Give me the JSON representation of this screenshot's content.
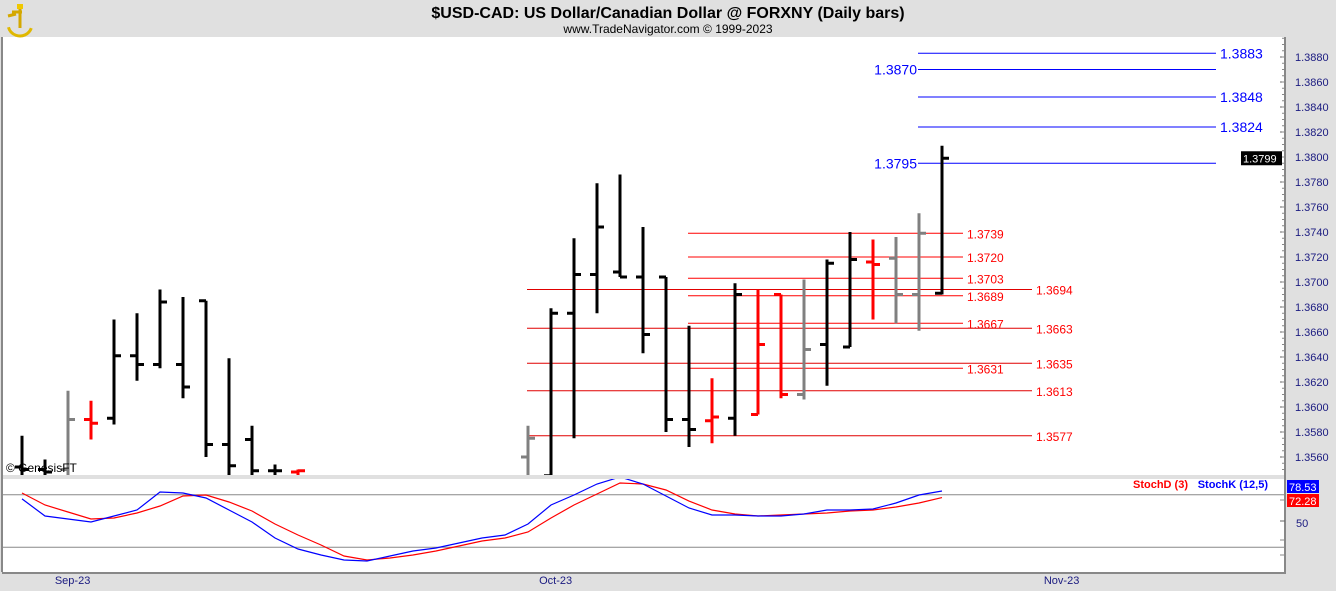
{
  "header": {
    "title": "$USD-CAD:  US Dollar/Canadian Dollar @ FORXNY  (Daily bars)",
    "subtitle": "www.TradeNavigator.com © 1999-2023",
    "logo": "sextant-logo"
  },
  "watermark": "© GenesisFT",
  "chart_data": [
    {
      "type": "ohlc",
      "title": "$USD-CAD:  US Dollar/Canadian Dollar @ FORXNY  (Daily bars)",
      "ylim": [
        1.3545,
        1.3895
      ],
      "y_ticks": [
        "1.3880",
        "1.3860",
        "1.3840",
        "1.3820",
        "1.3800",
        "1.3780",
        "1.3760",
        "1.3740",
        "1.3720",
        "1.3700",
        "1.3680",
        "1.3660",
        "1.3640",
        "1.3620",
        "1.3600",
        "1.3580",
        "1.3560"
      ],
      "x_labels": [
        "Sep-23",
        "Oct-23",
        "Nov-23"
      ],
      "last_price": "1.3799",
      "colors": {
        "black": "#000000",
        "red": "#ff0000",
        "gray": "#808080"
      },
      "bars": [
        {
          "o": 1.3552,
          "h": 1.3577,
          "l": 1.354,
          "c": 1.355,
          "color": "black"
        },
        {
          "o": 1.355,
          "h": 1.3558,
          "l": 1.354,
          "c": 1.3548,
          "color": "black"
        },
        {
          "o": 1.355,
          "h": 1.3613,
          "l": 1.354,
          "c": 1.359,
          "color": "gray"
        },
        {
          "o": 1.359,
          "h": 1.3605,
          "l": 1.3574,
          "c": 1.3587,
          "color": "red"
        },
        {
          "o": 1.3591,
          "h": 1.367,
          "l": 1.3586,
          "c": 1.3641,
          "color": "black"
        },
        {
          "o": 1.3641,
          "h": 1.3675,
          "l": 1.3621,
          "c": 1.3634,
          "color": "black"
        },
        {
          "o": 1.3634,
          "h": 1.3694,
          "l": 1.3631,
          "c": 1.3684,
          "color": "black"
        },
        {
          "o": 1.3634,
          "h": 1.3688,
          "l": 1.3607,
          "c": 1.3616,
          "color": "black"
        },
        {
          "o": 1.3685,
          "h": 1.3685,
          "l": 1.356,
          "c": 1.357,
          "color": "black"
        },
        {
          "o": 1.357,
          "h": 1.3639,
          "l": 1.354,
          "c": 1.3553,
          "color": "black"
        },
        {
          "o": 1.3574,
          "h": 1.3585,
          "l": 1.354,
          "c": 1.3549,
          "color": "black"
        },
        {
          "o": 1.3549,
          "h": 1.3554,
          "l": 1.354,
          "c": 1.3549,
          "color": "black"
        },
        {
          "o": 1.3548,
          "h": 1.355,
          "l": 1.354,
          "c": 1.3549,
          "color": "red"
        },
        null,
        null,
        null,
        null,
        null,
        null,
        null,
        null,
        null,
        {
          "o": 1.356,
          "h": 1.3585,
          "l": 1.354,
          "c": 1.3575,
          "color": "gray"
        },
        {
          "o": 1.3545,
          "h": 1.3679,
          "l": 1.354,
          "c": 1.3675,
          "color": "black"
        },
        {
          "o": 1.3675,
          "h": 1.3735,
          "l": 1.3575,
          "c": 1.3706,
          "color": "black"
        },
        {
          "o": 1.3706,
          "h": 1.3779,
          "l": 1.3675,
          "c": 1.3744,
          "color": "black"
        },
        {
          "o": 1.3708,
          "h": 1.3786,
          "l": 1.3704,
          "c": 1.3704,
          "color": "black"
        },
        {
          "o": 1.3704,
          "h": 1.3744,
          "l": 1.3643,
          "c": 1.3658,
          "color": "black"
        },
        {
          "o": 1.3704,
          "h": 1.3704,
          "l": 1.358,
          "c": 1.359,
          "color": "black"
        },
        {
          "o": 1.359,
          "h": 1.3665,
          "l": 1.3568,
          "c": 1.3582,
          "color": "black"
        },
        {
          "o": 1.3589,
          "h": 1.3623,
          "l": 1.3571,
          "c": 1.3592,
          "color": "red"
        },
        {
          "o": 1.3591,
          "h": 1.3699,
          "l": 1.3577,
          "c": 1.369,
          "color": "black"
        },
        {
          "o": 1.3594,
          "h": 1.3694,
          "l": 1.3594,
          "c": 1.365,
          "color": "red"
        },
        {
          "o": 1.369,
          "h": 1.369,
          "l": 1.3607,
          "c": 1.361,
          "color": "red"
        },
        {
          "o": 1.361,
          "h": 1.3702,
          "l": 1.3606,
          "c": 1.3646,
          "color": "gray"
        },
        {
          "o": 1.365,
          "h": 1.3718,
          "l": 1.3617,
          "c": 1.3715,
          "color": "black"
        },
        {
          "o": 1.3648,
          "h": 1.374,
          "l": 1.3648,
          "c": 1.3718,
          "color": "black"
        },
        {
          "o": 1.3716,
          "h": 1.3734,
          "l": 1.367,
          "c": 1.3714,
          "color": "red"
        },
        {
          "o": 1.3719,
          "h": 1.3736,
          "l": 1.3667,
          "c": 1.369,
          "color": "gray"
        },
        {
          "o": 1.369,
          "h": 1.3755,
          "l": 1.3661,
          "c": 1.3739,
          "color": "gray"
        },
        {
          "o": 1.3691,
          "h": 1.3809,
          "l": 1.369,
          "c": 1.3799,
          "color": "black"
        }
      ],
      "levels": {
        "blue": [
          {
            "value": "1.3883",
            "label_side": "right"
          },
          {
            "value": "1.3870",
            "label_side": "left"
          },
          {
            "value": "1.3848",
            "label_side": "right"
          },
          {
            "value": "1.3824",
            "label_side": "right"
          },
          {
            "value": "1.3795",
            "label_side": "left"
          }
        ],
        "red_short": [
          "1.3739",
          "1.3720",
          "1.3703",
          "1.3689",
          "1.3667",
          "1.3631"
        ],
        "red_long": [
          "1.3694",
          "1.3663",
          "1.3635",
          "1.3613",
          "1.3577"
        ],
        "colors": {
          "blue": "#0000ff",
          "red": "#ff0000"
        }
      }
    },
    {
      "type": "line",
      "ylim": [
        0,
        100
      ],
      "y_ticks": [
        "50"
      ],
      "reference_lines": [
        75,
        25
      ],
      "series": [
        {
          "name": "StochD (3)",
          "color": "#ff0000",
          "last": "72.28",
          "values": [
            76.7,
            65.2,
            58.6,
            51.9,
            52.9,
            57.6,
            64.3,
            73.8,
            74.8,
            68.1,
            59.5,
            47.1,
            36.7,
            27.1,
            16.7,
            12.9,
            14.8,
            17.6,
            21.4,
            26.2,
            31.0,
            33.8,
            39.5,
            52.9,
            65.2,
            75.7,
            86.2,
            85.2,
            79.5,
            69.0,
            60.5,
            56.7,
            54.8,
            55.7,
            56.7,
            57.6,
            59.5,
            60.5,
            63.3,
            67.1,
            72.28
          ]
        },
        {
          "name": "StochK (12,5)",
          "color": "#0000ff",
          "last": "78.53",
          "values": [
            71.0,
            54.8,
            51.9,
            49.0,
            54.8,
            60.5,
            77.6,
            76.7,
            71.9,
            60.5,
            49.0,
            33.8,
            23.3,
            17.6,
            12.9,
            11.9,
            16.7,
            21.4,
            24.3,
            29.0,
            33.8,
            36.7,
            47.1,
            65.2,
            74.8,
            85.2,
            91.9,
            85.2,
            73.8,
            62.4,
            55.7,
            55.7,
            54.8,
            54.8,
            56.7,
            60.5,
            60.5,
            61.4,
            67.1,
            74.8,
            78.53
          ]
        }
      ]
    }
  ]
}
